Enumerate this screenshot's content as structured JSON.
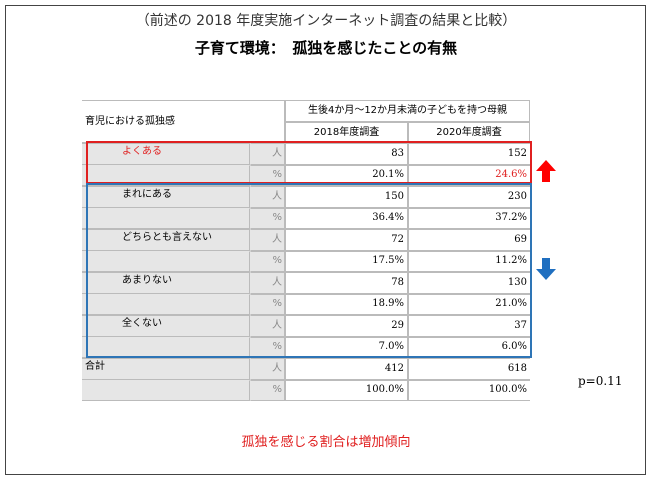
{
  "header": {
    "title": "（前述の 2018 年度実施インターネット調査の結果と比較）",
    "subtitle": "子育て環境：　孤独を感じたことの有無"
  },
  "table": {
    "row_header": "育児における孤独感",
    "group_header": "生後4か月～12か月未満の子どもを持つ母親",
    "columns": [
      "2018年度調査",
      "2020年度調査"
    ],
    "rows": [
      {
        "label": "よくある",
        "unit": "人",
        "values": [
          "83",
          "152"
        ]
      },
      {
        "unit": "%",
        "values": [
          "20.1%",
          "24.6%"
        ]
      },
      {
        "label": "まれにある",
        "unit": "人",
        "values": [
          "150",
          "230"
        ]
      },
      {
        "unit": "%",
        "values": [
          "36.4%",
          "37.2%"
        ]
      },
      {
        "label": "どちらとも言えない",
        "unit": "人",
        "values": [
          "72",
          "69"
        ]
      },
      {
        "unit": "%",
        "values": [
          "17.5%",
          "11.2%"
        ]
      },
      {
        "label": "あまりない",
        "unit": "人",
        "values": [
          "78",
          "130"
        ]
      },
      {
        "unit": "%",
        "values": [
          "18.9%",
          "21.0%"
        ]
      },
      {
        "label": "全くない",
        "unit": "人",
        "values": [
          "29",
          "37"
        ]
      },
      {
        "unit": "%",
        "values": [
          "7.0%",
          "6.0%"
        ]
      },
      {
        "label": "合計",
        "unit": "人",
        "values": [
          "412",
          "618"
        ]
      },
      {
        "unit": "%",
        "values": [
          "100.0%",
          "100.0%"
        ]
      }
    ]
  },
  "p_value": "p=0.11",
  "conclusion": "孤独を感じる割合は増加傾向"
}
